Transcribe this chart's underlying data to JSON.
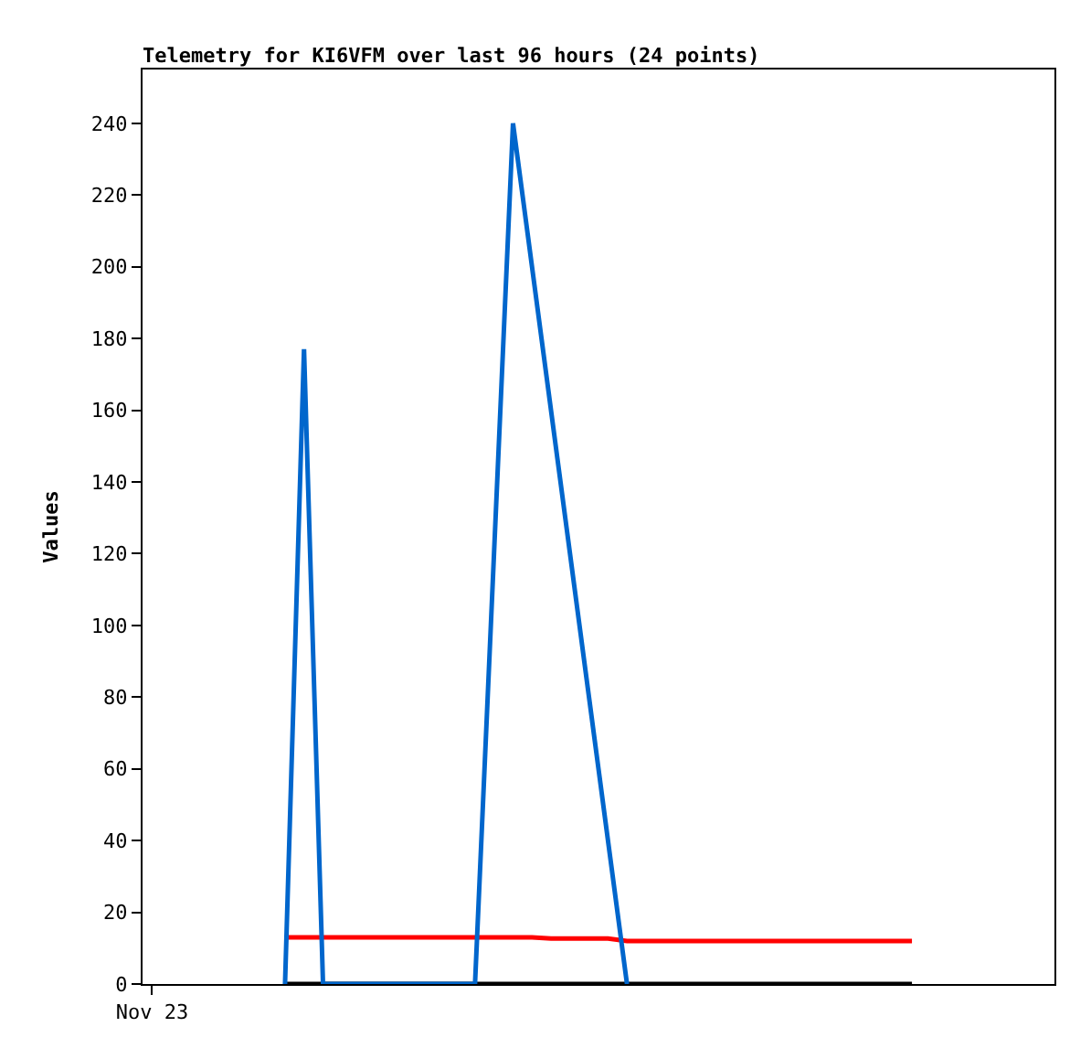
{
  "chart_data": {
    "type": "line",
    "title": "Telemetry for KI6VFM over last 96 hours (24 points)",
    "ylabel": "Values",
    "categories": [
      "Nov 23",
      null,
      null,
      null,
      null,
      null,
      null,
      null,
      null,
      null,
      null,
      null,
      null,
      null,
      null,
      null,
      null,
      null,
      null,
      null,
      null,
      null,
      null,
      null,
      null,
      null,
      null,
      null,
      null,
      null,
      null,
      null,
      null,
      null,
      null,
      null,
      null,
      null,
      null,
      null,
      null,
      null,
      null,
      null,
      null,
      null,
      null,
      null
    ],
    "ylim": [
      0,
      255
    ],
    "yticks": [
      0,
      20,
      40,
      60,
      80,
      100,
      120,
      140,
      160,
      180,
      200,
      220,
      240
    ],
    "marker": "none",
    "line_style": "solid",
    "series": [
      {
        "color": "#000000",
        "values": [
          null,
          null,
          null,
          null,
          null,
          null,
          null,
          0,
          null,
          null,
          null,
          null,
          null,
          null,
          null,
          null,
          null,
          null,
          null,
          null,
          null,
          null,
          null,
          null,
          null,
          null,
          null,
          null,
          null,
          null,
          null,
          null,
          null,
          null,
          null,
          null,
          null,
          null,
          null,
          null,
          0,
          null,
          null,
          null,
          null,
          null,
          null,
          null
        ]
      },
      {
        "color": "#ff0000",
        "values": [
          null,
          null,
          null,
          null,
          null,
          null,
          null,
          13,
          null,
          null,
          null,
          null,
          null,
          null,
          null,
          null,
          null,
          null,
          null,
          null,
          13,
          12.7,
          null,
          null,
          12.7,
          12,
          null,
          null,
          null,
          null,
          null,
          null,
          null,
          null,
          null,
          null,
          null,
          null,
          null,
          null,
          12,
          null,
          null,
          null,
          null,
          null,
          null,
          null
        ]
      },
      {
        "color": "#0066cc",
        "values": [
          null,
          null,
          null,
          null,
          null,
          null,
          null,
          0,
          177,
          0,
          null,
          null,
          null,
          null,
          null,
          null,
          null,
          0,
          null,
          240,
          null,
          null,
          null,
          null,
          null,
          0,
          null,
          null,
          null,
          null,
          null,
          null,
          null,
          null,
          null,
          null,
          null,
          null,
          null,
          null,
          null,
          null,
          null,
          null,
          null,
          null,
          null,
          null
        ]
      }
    ]
  }
}
